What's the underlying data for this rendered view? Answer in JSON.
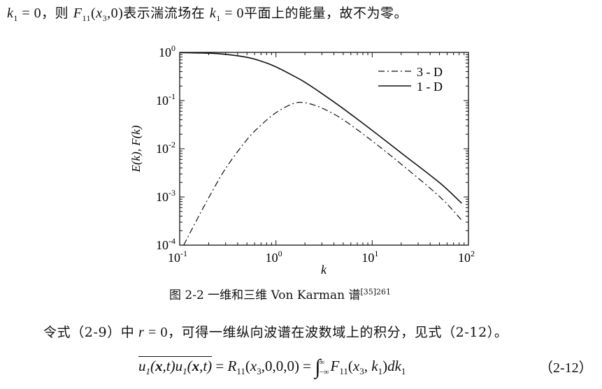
{
  "top_line": {
    "k1_eq_zero": "k1 = 0",
    "text_a": "，则",
    "function": "F11(x3,0)",
    "text_b": "表示湍流场在",
    "k1_eq_zero_2": "k1 = 0",
    "text_c": "平面上的能量，故不为零。"
  },
  "figure": {
    "caption_text": "图 2-2  一维和三维 Von Karman 谱",
    "caption_ref": "[35]261"
  },
  "chart_data": {
    "type": "line",
    "title": "",
    "xlabel": "k",
    "ylabel": "E(k), F(k)",
    "x_scale": "log",
    "y_scale": "log",
    "xlim": [
      0.1,
      100
    ],
    "ylim": [
      0.0001,
      1
    ],
    "x_tick_labels": [
      {
        "base": "10",
        "exp": "-1"
      },
      {
        "base": "10",
        "exp": "0"
      },
      {
        "base": "10",
        "exp": "1"
      },
      {
        "base": "10",
        "exp": "2"
      }
    ],
    "y_tick_labels": [
      {
        "base": "10",
        "exp": "0"
      },
      {
        "base": "10",
        "exp": "-1"
      },
      {
        "base": "10",
        "exp": "-2"
      },
      {
        "base": "10",
        "exp": "-3"
      },
      {
        "base": "10",
        "exp": "-4"
      }
    ],
    "legend_position": "top-right",
    "grid": false,
    "series": [
      {
        "name": "3 - D",
        "style": "dash-dot",
        "x": [
          0.11,
          0.15,
          0.2,
          0.3,
          0.5,
          0.7,
          1.0,
          1.5,
          2.0,
          3.0,
          5.0,
          10.0,
          20.0,
          50.0,
          85.0
        ],
        "y": [
          0.0001,
          0.00033,
          0.00096,
          0.0039,
          0.0155,
          0.031,
          0.056,
          0.086,
          0.09,
          0.07,
          0.04,
          0.0145,
          0.0048,
          0.00102,
          0.00033
        ]
      },
      {
        "name": "1 - D",
        "style": "solid",
        "x": [
          0.1,
          0.2,
          0.3,
          0.5,
          0.7,
          1.0,
          1.5,
          2.0,
          3.0,
          5.0,
          10.0,
          20.0,
          50.0,
          85.0
        ],
        "y": [
          0.99,
          0.96,
          0.91,
          0.79,
          0.66,
          0.5,
          0.33,
          0.24,
          0.14,
          0.068,
          0.024,
          0.0082,
          0.00198,
          0.00074
        ]
      }
    ]
  },
  "paragraph": {
    "text_a": "令式（2-9）中",
    "r_eq_zero": "r = 0",
    "text_b": "，可得一维纵向波谱在波数域上的积分，见式（2-12）。"
  },
  "equation": {
    "number": "（2-12）"
  }
}
